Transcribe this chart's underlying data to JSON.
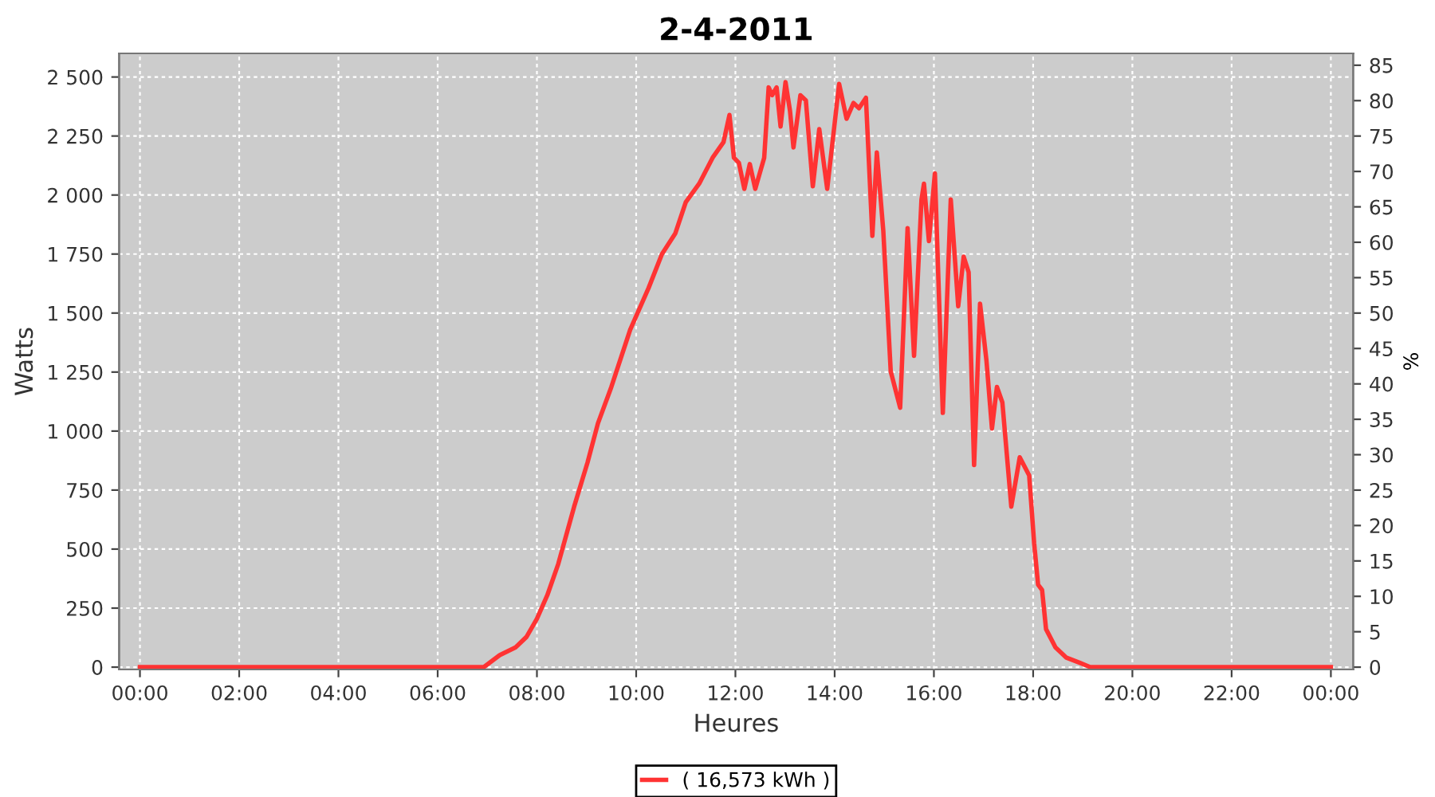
{
  "chart_data": {
    "type": "line",
    "title": "2-4-2011",
    "xlabel": "Heures",
    "ylabel": "Watts",
    "y2label": "%",
    "xlim": [
      -0.42,
      24.45
    ],
    "xticks": [
      {
        "value": 0,
        "label": "00:00"
      },
      {
        "value": 2,
        "label": "02:00"
      },
      {
        "value": 4,
        "label": "04:00"
      },
      {
        "value": 6,
        "label": "06:00"
      },
      {
        "value": 8,
        "label": "08:00"
      },
      {
        "value": 10,
        "label": "10:00"
      },
      {
        "value": 12,
        "label": "12:00"
      },
      {
        "value": 14,
        "label": "14:00"
      },
      {
        "value": 16,
        "label": "16:00"
      },
      {
        "value": 18,
        "label": "18:00"
      },
      {
        "value": 20,
        "label": "20:00"
      },
      {
        "value": 22,
        "label": "22:00"
      },
      {
        "value": 24,
        "label": "00:00"
      }
    ],
    "ylim": [
      -10,
      2600
    ],
    "yticks": [
      0,
      250,
      500,
      750,
      {
        "value": 1000,
        "label": "1 000"
      },
      {
        "value": 1250,
        "label": "1 250"
      },
      {
        "value": 1500,
        "label": "1 500"
      },
      {
        "value": 1750,
        "label": "1 750"
      },
      {
        "value": 2000,
        "label": "2 000"
      },
      {
        "value": 2250,
        "label": "2 250"
      },
      {
        "value": 2500,
        "label": "2 500"
      }
    ],
    "y2lim": [
      -0.33,
      86.67
    ],
    "y2ticks": [
      0,
      5,
      10,
      15,
      20,
      25,
      30,
      35,
      40,
      45,
      50,
      55,
      60,
      65,
      70,
      75,
      80,
      85
    ],
    "grid": true,
    "legend": "bottom",
    "marker": "none",
    "line_style": "solid",
    "series": [
      {
        "name": "( 16,573 kWh )",
        "color": "#ff3333",
        "x": [
          0,
          6.93,
          7.25,
          7.57,
          7.79,
          8.0,
          8.21,
          8.43,
          8.75,
          9.02,
          9.23,
          9.5,
          9.88,
          10.25,
          10.52,
          10.79,
          11.0,
          11.27,
          11.54,
          11.76,
          11.88,
          11.97,
          12.07,
          12.18,
          12.29,
          12.4,
          12.58,
          12.67,
          12.74,
          12.83,
          12.91,
          13.01,
          13.1,
          13.17,
          13.31,
          13.42,
          13.56,
          13.69,
          13.85,
          14.09,
          14.24,
          14.38,
          14.49,
          14.63,
          14.76,
          14.85,
          14.98,
          15.13,
          15.32,
          15.47,
          15.6,
          15.75,
          15.8,
          15.9,
          16.02,
          16.18,
          16.34,
          16.49,
          16.6,
          16.7,
          16.81,
          16.93,
          17.06,
          17.17,
          17.27,
          17.38,
          17.56,
          17.73,
          17.92,
          18.02,
          18.1,
          18.18,
          18.26,
          18.45,
          18.67,
          18.94,
          19.15,
          24
        ],
        "values": [
          0,
          0,
          51,
          84,
          128,
          205,
          305,
          437,
          680,
          867,
          1033,
          1187,
          1430,
          1606,
          1750,
          1838,
          1970,
          2048,
          2158,
          2224,
          2339,
          2158,
          2136,
          2026,
          2131,
          2026,
          2158,
          2456,
          2423,
          2456,
          2290,
          2478,
          2357,
          2202,
          2423,
          2401,
          2037,
          2279,
          2026,
          2471,
          2323,
          2390,
          2368,
          2412,
          1827,
          2180,
          1849,
          1253,
          1099,
          1860,
          1319,
          1981,
          2048,
          1805,
          2092,
          1077,
          1981,
          1529,
          1739,
          1673,
          856,
          1540,
          1297,
          1011,
          1187,
          1121,
          680,
          889,
          812,
          525,
          349,
          327,
          161,
          84,
          40,
          18,
          0,
          0
        ]
      }
    ]
  }
}
